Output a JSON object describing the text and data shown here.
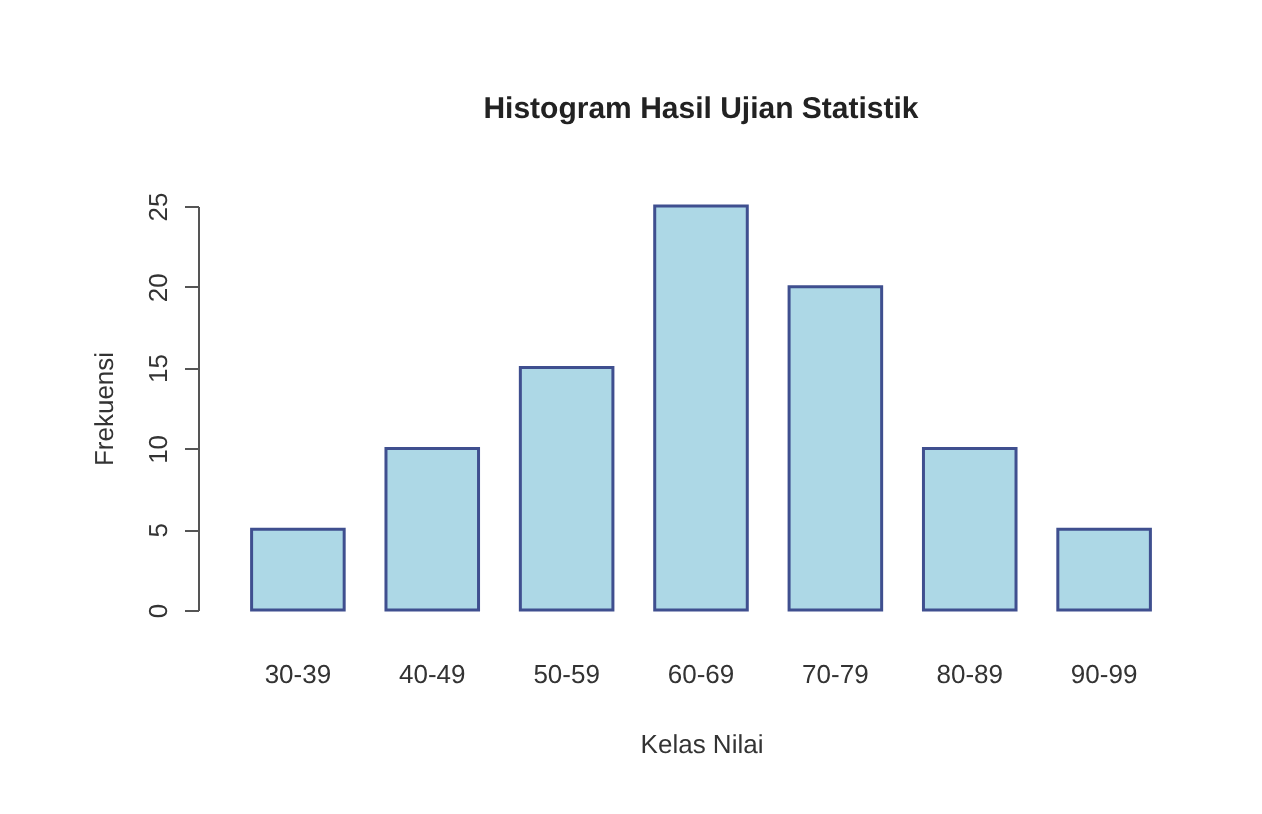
{
  "chart_data": {
    "type": "bar",
    "title": "Histogram Hasil Ujian Statistik",
    "xlabel": "Kelas Nilai",
    "ylabel": "Frekuensi",
    "categories": [
      "30-39",
      "40-49",
      "50-59",
      "60-69",
      "70-79",
      "80-89",
      "90-99"
    ],
    "values": [
      5,
      10,
      15,
      25,
      20,
      10,
      5
    ],
    "color": "#add8e6",
    "ylim": [
      0,
      25
    ],
    "yticks": [
      0,
      5,
      10,
      15,
      20,
      25
    ],
    "grid": false
  }
}
